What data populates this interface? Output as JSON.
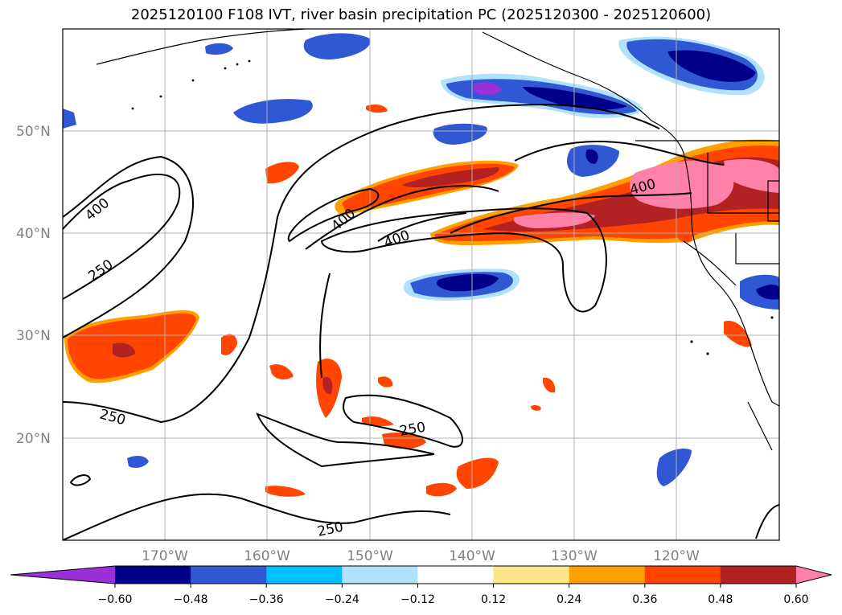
{
  "title": "2025120100 F108 IVT, river basin precipitation PC (2025120300 - 2025120600)",
  "map": {
    "lon_range": [
      -180,
      -110
    ],
    "lat_range": [
      10,
      60
    ],
    "lat_ticks": [
      {
        "lat": 50,
        "label": "50°N"
      },
      {
        "lat": 40,
        "label": "40°N"
      },
      {
        "lat": 30,
        "label": "30°N"
      },
      {
        "lat": 20,
        "label": "20°N"
      }
    ],
    "lon_ticks": [
      {
        "lon": -170,
        "label": "170°W"
      },
      {
        "lon": -160,
        "label": "160°W"
      },
      {
        "lon": -150,
        "label": "150°W"
      },
      {
        "lon": -140,
        "label": "140°W"
      },
      {
        "lon": -130,
        "label": "130°W"
      },
      {
        "lon": -120,
        "label": "120°W"
      }
    ],
    "contour_labels": [
      "400",
      "250",
      "400",
      "400",
      "400",
      "250",
      "250",
      "250"
    ],
    "gridlines": true
  },
  "colorbar": {
    "ticks": [
      "−0.60",
      "−0.48",
      "−0.36",
      "−0.24",
      "−0.12",
      "0.12",
      "0.24",
      "0.36",
      "0.48",
      "0.60"
    ],
    "colors": [
      "#9b30d9",
      "#00008b",
      "#3158d4",
      "#00bfff",
      "#b0e2ff",
      "#ffffff",
      "#fde68a",
      "#ffa000",
      "#ff4500",
      "#b22222",
      "#ff80a8"
    ]
  }
}
